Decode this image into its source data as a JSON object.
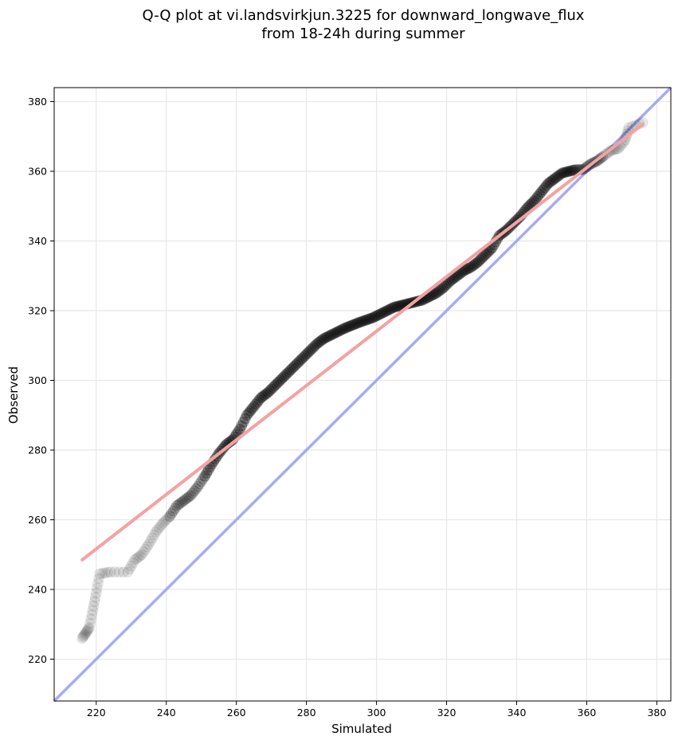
{
  "chart_data": {
    "type": "scatter",
    "title_lines": [
      "Q-Q plot at vi.landsvirkjun.3225 for downward_longwave_flux",
      "from 18-24h during summer"
    ],
    "xlabel": "Simulated",
    "ylabel": "Observed",
    "xlim": [
      208,
      384
    ],
    "ylim": [
      208,
      384
    ],
    "x_ticks": [
      220,
      240,
      260,
      280,
      300,
      320,
      340,
      360,
      380
    ],
    "y_ticks": [
      220,
      240,
      260,
      280,
      300,
      320,
      340,
      360,
      380
    ],
    "grid": true,
    "colors": {
      "points": "#000000",
      "fit_line": "#f4a3a3",
      "fit_line_core": "#c0392b",
      "identity_line": "#a9aaf5",
      "grid": "#e8e8e8"
    },
    "identity_line": {
      "x": [
        208,
        384
      ],
      "y": [
        208,
        384
      ]
    },
    "fit_line": {
      "x": [
        216,
        376
      ],
      "y": [
        248.5,
        373.5
      ]
    },
    "quantiles": {
      "x": [
        216,
        217,
        218,
        219,
        220,
        221,
        224,
        229,
        231,
        233,
        235,
        237,
        239,
        241,
        243,
        245,
        247,
        249,
        251,
        253,
        255,
        257,
        259,
        261,
        263,
        265,
        267,
        269,
        271,
        273,
        275,
        277,
        279,
        281,
        283,
        285,
        287,
        289,
        291,
        293,
        295,
        297,
        299,
        301,
        303,
        305,
        307,
        309,
        311,
        313,
        315,
        317,
        319,
        321,
        323,
        325,
        327,
        329,
        331,
        333,
        335,
        337,
        339,
        341,
        343,
        345,
        347,
        349,
        351,
        353,
        355,
        357,
        359,
        361,
        363,
        365,
        367,
        369,
        371,
        372,
        376
      ],
      "y": [
        226,
        227.5,
        229,
        234,
        239,
        244.5,
        245,
        245,
        248.5,
        250,
        253,
        256.5,
        259,
        261,
        264,
        265.5,
        267,
        269.5,
        272.5,
        276,
        279,
        281.5,
        283,
        286,
        290,
        292.5,
        295,
        296.5,
        298.5,
        300.5,
        302.5,
        304.5,
        306.5,
        308.5,
        310.5,
        312,
        313,
        314,
        315,
        315.8,
        316.6,
        317.3,
        318,
        319,
        320,
        321,
        321.5,
        322,
        322.5,
        323,
        324,
        325,
        326.5,
        328.5,
        330,
        331.5,
        332.5,
        334,
        336,
        338,
        341.5,
        343,
        345,
        347,
        349.5,
        351.5,
        354,
        356.5,
        358,
        359.5,
        360,
        360.5,
        360.5,
        362,
        363,
        364.5,
        366,
        366.5,
        369,
        372.5,
        374
      ]
    }
  }
}
